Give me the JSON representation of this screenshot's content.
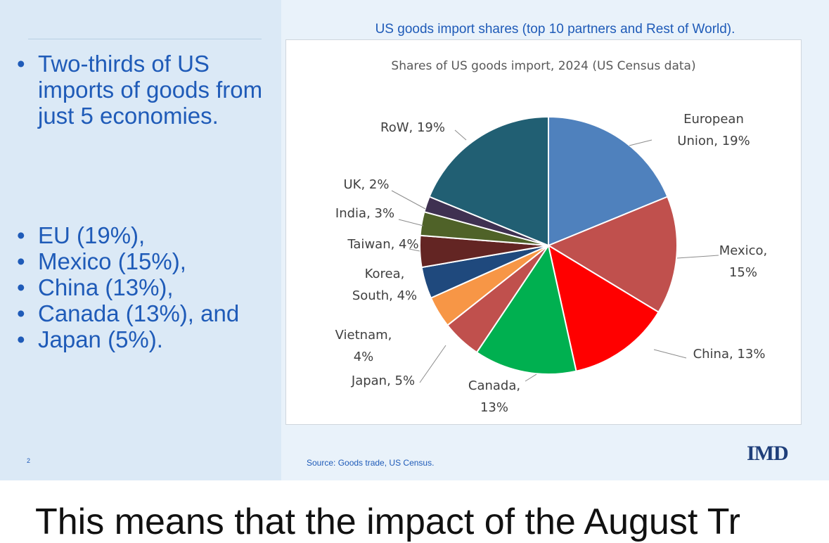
{
  "slide": {
    "bullets_top": [
      "Two-thirds of US imports of goods from just 5 economies."
    ],
    "bullets_bottom": [
      "EU (19%),",
      "Mexico (15%),",
      "China (13%),",
      "Canada (13%), and",
      "Japan (5%)."
    ],
    "page_number": "2",
    "frame_title": "US goods import shares (top 10 partners and Rest of World).",
    "source": "Source: Goods trade, US Census.",
    "logo": "IMD"
  },
  "caption": "This means that the impact of the August Tr",
  "chart_data": {
    "type": "pie",
    "title": "Shares of US goods import, 2024 (US Census data)",
    "categories": [
      "European Union",
      "Mexico",
      "China",
      "Canada",
      "Japan",
      "Vietnam",
      "Korea, South",
      "Taiwan",
      "India",
      "UK",
      "RoW"
    ],
    "values": [
      19,
      15,
      13,
      13,
      5,
      4,
      4,
      4,
      3,
      2,
      19
    ],
    "colors": [
      "#4f81bd",
      "#c0504d",
      "#ff0000",
      "#00b050",
      "#c0504d",
      "#f79646",
      "#1f497d",
      "#632523",
      "#4f6228",
      "#3f3151",
      "#215f73"
    ],
    "labels": [
      [
        "European",
        "Union, 19%"
      ],
      [
        "Mexico,",
        "15%"
      ],
      [
        "China, 13%"
      ],
      [
        "Canada,",
        "13%"
      ],
      [
        "Japan, 5%"
      ],
      [
        "Vietnam,",
        "4%"
      ],
      [
        "Korea,",
        "South, 4%"
      ],
      [
        "Taiwan, 4%"
      ],
      [
        "India, 3%"
      ],
      [
        "UK, 2%"
      ],
      [
        "RoW, 19%"
      ]
    ]
  }
}
